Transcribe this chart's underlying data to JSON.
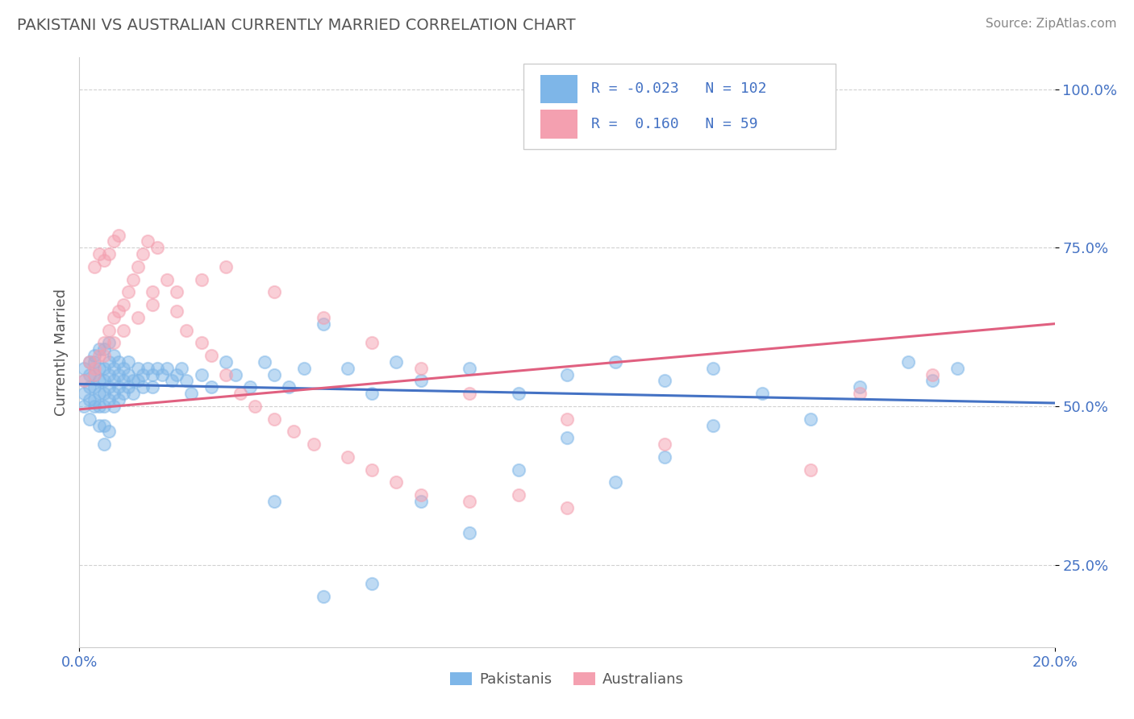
{
  "title": "PAKISTANI VS AUSTRALIAN CURRENTLY MARRIED CORRELATION CHART",
  "source": "Source: ZipAtlas.com",
  "ylabel": "Currently Married",
  "x_min": 0.0,
  "x_max": 0.2,
  "y_min": 0.12,
  "y_max": 1.05,
  "y_ticks": [
    0.25,
    0.5,
    0.75,
    1.0
  ],
  "y_tick_labels": [
    "25.0%",
    "50.0%",
    "75.0%",
    "100.0%"
  ],
  "x_ticks": [
    0.0,
    0.2
  ],
  "x_tick_labels": [
    "0.0%",
    "20.0%"
  ],
  "pakistanis_color": "#7EB6E8",
  "australians_color": "#F4A0B0",
  "pakistanis_line_color": "#4472C4",
  "australians_line_color": "#E06080",
  "r_pakistanis": -0.023,
  "n_pakistanis": 102,
  "r_australians": 0.16,
  "n_australians": 59,
  "legend_label_pakistanis": "Pakistanis",
  "legend_label_australians": "Australians",
  "background_color": "#FFFFFF",
  "grid_color": "#CCCCCC",
  "tick_color": "#4472C4",
  "ylabel_color": "#555555",
  "title_color": "#555555",
  "source_color": "#888888",
  "pak_line_y0": 0.535,
  "pak_line_y1": 0.505,
  "aus_line_y0": 0.495,
  "aus_line_y1": 0.63,
  "pakistanis_x": [
    0.001,
    0.001,
    0.001,
    0.001,
    0.002,
    0.002,
    0.002,
    0.002,
    0.002,
    0.003,
    0.003,
    0.003,
    0.003,
    0.003,
    0.003,
    0.004,
    0.004,
    0.004,
    0.004,
    0.004,
    0.004,
    0.005,
    0.005,
    0.005,
    0.005,
    0.005,
    0.005,
    0.005,
    0.006,
    0.006,
    0.006,
    0.006,
    0.006,
    0.006,
    0.007,
    0.007,
    0.007,
    0.007,
    0.007,
    0.008,
    0.008,
    0.008,
    0.008,
    0.009,
    0.009,
    0.009,
    0.01,
    0.01,
    0.01,
    0.011,
    0.011,
    0.012,
    0.012,
    0.013,
    0.013,
    0.014,
    0.015,
    0.015,
    0.016,
    0.017,
    0.018,
    0.019,
    0.02,
    0.021,
    0.022,
    0.023,
    0.025,
    0.027,
    0.03,
    0.032,
    0.035,
    0.038,
    0.04,
    0.043,
    0.046,
    0.05,
    0.055,
    0.06,
    0.065,
    0.07,
    0.08,
    0.09,
    0.1,
    0.11,
    0.12,
    0.13,
    0.14,
    0.15,
    0.16,
    0.17,
    0.175,
    0.18,
    0.04,
    0.05,
    0.06,
    0.07,
    0.08,
    0.09,
    0.1,
    0.11,
    0.12,
    0.13
  ],
  "pakistanis_y": [
    0.54,
    0.52,
    0.56,
    0.5,
    0.55,
    0.57,
    0.53,
    0.51,
    0.48,
    0.55,
    0.57,
    0.53,
    0.51,
    0.58,
    0.5,
    0.54,
    0.56,
    0.52,
    0.59,
    0.5,
    0.47,
    0.54,
    0.56,
    0.52,
    0.59,
    0.5,
    0.47,
    0.44,
    0.55,
    0.57,
    0.53,
    0.51,
    0.6,
    0.46,
    0.54,
    0.56,
    0.52,
    0.58,
    0.5,
    0.55,
    0.53,
    0.57,
    0.51,
    0.54,
    0.56,
    0.52,
    0.55,
    0.53,
    0.57,
    0.54,
    0.52,
    0.56,
    0.54,
    0.55,
    0.53,
    0.56,
    0.55,
    0.53,
    0.56,
    0.55,
    0.56,
    0.54,
    0.55,
    0.56,
    0.54,
    0.52,
    0.55,
    0.53,
    0.57,
    0.55,
    0.53,
    0.57,
    0.55,
    0.53,
    0.56,
    0.63,
    0.56,
    0.52,
    0.57,
    0.54,
    0.56,
    0.52,
    0.55,
    0.57,
    0.54,
    0.56,
    0.52,
    0.48,
    0.53,
    0.57,
    0.54,
    0.56,
    0.35,
    0.2,
    0.22,
    0.35,
    0.3,
    0.4,
    0.45,
    0.38,
    0.42,
    0.47
  ],
  "australians_x": [
    0.001,
    0.002,
    0.003,
    0.003,
    0.004,
    0.004,
    0.005,
    0.005,
    0.006,
    0.006,
    0.007,
    0.007,
    0.008,
    0.008,
    0.009,
    0.01,
    0.011,
    0.012,
    0.013,
    0.014,
    0.015,
    0.016,
    0.018,
    0.02,
    0.022,
    0.025,
    0.027,
    0.03,
    0.033,
    0.036,
    0.04,
    0.044,
    0.048,
    0.055,
    0.06,
    0.065,
    0.07,
    0.08,
    0.09,
    0.1,
    0.003,
    0.005,
    0.007,
    0.009,
    0.012,
    0.015,
    0.02,
    0.025,
    0.03,
    0.04,
    0.05,
    0.06,
    0.07,
    0.08,
    0.1,
    0.12,
    0.15,
    0.16,
    0.175
  ],
  "australians_y": [
    0.54,
    0.57,
    0.55,
    0.72,
    0.58,
    0.74,
    0.6,
    0.73,
    0.62,
    0.74,
    0.64,
    0.76,
    0.65,
    0.77,
    0.66,
    0.68,
    0.7,
    0.72,
    0.74,
    0.76,
    0.68,
    0.75,
    0.7,
    0.65,
    0.62,
    0.6,
    0.58,
    0.55,
    0.52,
    0.5,
    0.48,
    0.46,
    0.44,
    0.42,
    0.4,
    0.38,
    0.36,
    0.35,
    0.36,
    0.34,
    0.56,
    0.58,
    0.6,
    0.62,
    0.64,
    0.66,
    0.68,
    0.7,
    0.72,
    0.68,
    0.64,
    0.6,
    0.56,
    0.52,
    0.48,
    0.44,
    0.4,
    0.52,
    0.55
  ]
}
